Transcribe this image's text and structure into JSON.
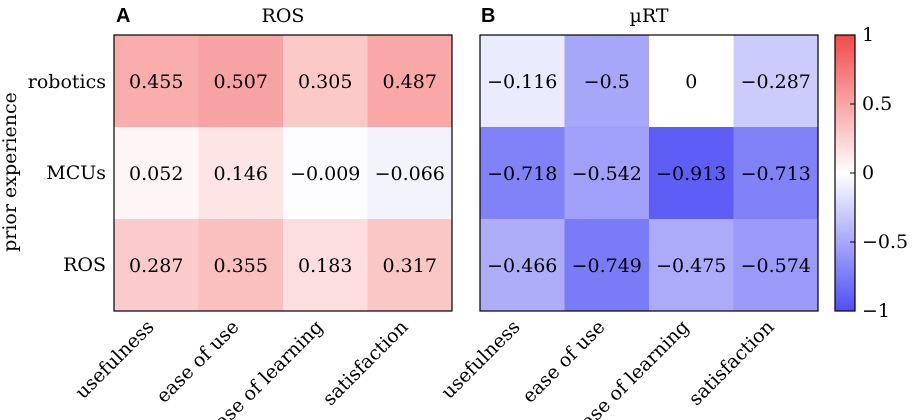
{
  "chart_data": [
    {
      "type": "heatmap",
      "panel_label": "A",
      "title": "ROS",
      "ylabel": "prior experience",
      "rows": [
        "robotics",
        "MCUs",
        "ROS"
      ],
      "columns": [
        "usefulness",
        "ease of use",
        "ease of learning",
        "satisfaction"
      ],
      "values": [
        [
          0.455,
          0.507,
          0.305,
          0.487
        ],
        [
          0.052,
          0.146,
          -0.009,
          -0.066
        ],
        [
          0.287,
          0.355,
          0.183,
          0.317
        ]
      ],
      "labels": [
        [
          "0.455",
          "0.507",
          "0.305",
          "0.487"
        ],
        [
          "0.052",
          "0.146",
          "−0.009",
          "−0.066"
        ],
        [
          "0.287",
          "0.355",
          "0.183",
          "0.317"
        ]
      ]
    },
    {
      "type": "heatmap",
      "panel_label": "B",
      "title": "µRT",
      "rows": [
        "robotics",
        "MCUs",
        "ROS"
      ],
      "columns": [
        "usefulness",
        "ease of use",
        "ease of learning",
        "satisfaction"
      ],
      "values": [
        [
          -0.116,
          -0.5,
          0,
          -0.287
        ],
        [
          -0.718,
          -0.542,
          -0.913,
          -0.713
        ],
        [
          -0.466,
          -0.749,
          -0.475,
          -0.574
        ]
      ],
      "labels": [
        [
          "−0.116",
          "−0.5",
          "0",
          "−0.287"
        ],
        [
          "−0.718",
          "−0.542",
          "−0.913",
          "−0.713"
        ],
        [
          "−0.466",
          "−0.749",
          "−0.475",
          "−0.574"
        ]
      ]
    }
  ],
  "colorbar": {
    "range": [
      -1,
      1
    ],
    "ticks": [
      1,
      0.5,
      0,
      -0.5,
      -1
    ],
    "tick_labels": [
      "1",
      "0.5",
      "0",
      "−0.5",
      "−1"
    ],
    "color_negative": "#4f4ff5",
    "color_zero": "#ffffff",
    "color_positive": "#f24a4a"
  }
}
